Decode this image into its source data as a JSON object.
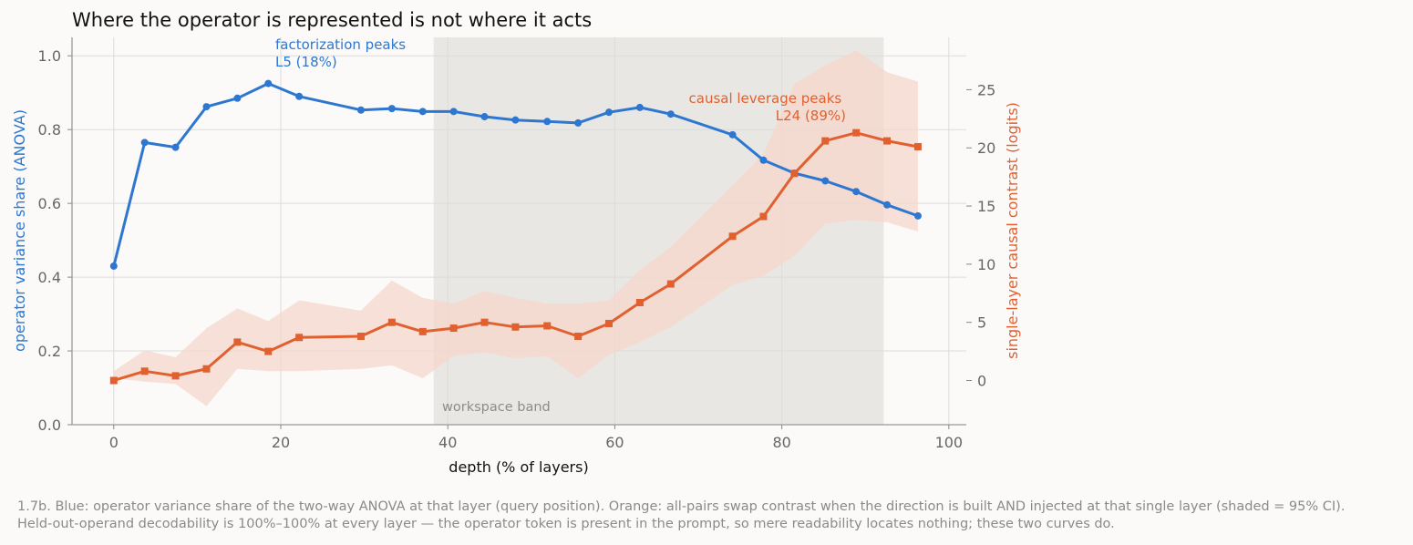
{
  "chart_data": {
    "type": "line",
    "title": "Where the operator is represented is not where it acts",
    "xlabel": "depth (% of layers)",
    "ylabel_left": "operator variance share (ANOVA)",
    "ylabel_right": "single-layer causal contrast (logits)",
    "xlim": [
      -5,
      101
    ],
    "ylim_left": [
      0,
      1.05
    ],
    "ylim_right": [
      -3.8,
      29.5
    ],
    "x_ticks": [
      0,
      20,
      40,
      60,
      80,
      100
    ],
    "x_tick_labels": [
      "0",
      "20",
      "40",
      "60",
      "80",
      "100"
    ],
    "y_left_ticks": [
      0.0,
      0.2,
      0.4,
      0.6,
      0.8,
      1.0
    ],
    "y_left_tick_labels": [
      "0.0",
      "0.2",
      "0.4",
      "0.6",
      "0.8",
      "1.0"
    ],
    "y_right_ticks": [
      0,
      5,
      10,
      15,
      20,
      25
    ],
    "y_right_tick_labels": [
      "0",
      "5",
      "10",
      "15",
      "20",
      "25"
    ],
    "grid": true,
    "colors": {
      "blue": "#2e77d0",
      "orange": "#e0612f",
      "band": "#e9e7e3",
      "ci": "#f6d7cc"
    },
    "band": {
      "label": "workspace band",
      "x_start": 38.3,
      "x_end": 92.2
    },
    "series": [
      {
        "axis": "left",
        "marker": "circle",
        "color": "#2e77d0",
        "x": [
          0,
          3.7,
          7.4,
          11.1,
          14.8,
          18.5,
          22.2,
          29.6,
          33.3,
          37.0,
          40.7,
          44.4,
          48.1,
          51.9,
          55.6,
          59.3,
          63.0,
          66.7,
          74.1,
          77.8,
          81.5,
          85.2,
          88.9,
          92.6,
          96.3
        ],
        "values": [
          0.43,
          0.765,
          0.752,
          0.862,
          0.885,
          0.925,
          0.89,
          0.853,
          0.857,
          0.849,
          0.849,
          0.835,
          0.826,
          0.822,
          0.818,
          0.847,
          0.86,
          0.842,
          0.786,
          0.717,
          0.682,
          0.661,
          0.632,
          0.596,
          0.566
        ]
      },
      {
        "axis": "right",
        "marker": "square",
        "color": "#e0612f",
        "x": [
          0,
          3.7,
          7.4,
          11.1,
          14.8,
          18.5,
          22.2,
          29.6,
          33.3,
          37.0,
          40.7,
          44.4,
          48.1,
          51.9,
          55.6,
          59.3,
          63.0,
          66.7,
          74.1,
          77.8,
          81.5,
          85.2,
          88.9,
          92.6,
          96.3
        ],
        "values": [
          0.0,
          0.8,
          0.4,
          1.0,
          3.3,
          2.5,
          3.7,
          3.8,
          5.0,
          4.2,
          4.5,
          5.0,
          4.6,
          4.7,
          3.8,
          4.9,
          6.7,
          8.3,
          12.4,
          14.1,
          17.8,
          20.6,
          21.3,
          20.6,
          20.1
        ],
        "ci_lower": [
          0.2,
          -0.1,
          -0.3,
          -2.2,
          1.0,
          0.8,
          0.8,
          1.0,
          1.3,
          0.2,
          2.1,
          2.4,
          1.9,
          2.1,
          0.2,
          2.2,
          3.3,
          4.6,
          8.2,
          9.0,
          10.7,
          13.5,
          13.8,
          13.6,
          12.8
        ],
        "ci_upper": [
          0.8,
          2.6,
          2.0,
          4.5,
          6.2,
          5.1,
          6.9,
          6.0,
          8.6,
          7.1,
          6.6,
          7.7,
          7.1,
          6.6,
          6.6,
          6.9,
          9.5,
          11.5,
          16.8,
          19.5,
          25.5,
          27.1,
          28.4,
          26.5,
          25.7
        ]
      }
    ],
    "annotations": [
      {
        "lines": [
          "factorization peaks",
          "L5 (18%)"
        ],
        "color": "#2e77d0"
      },
      {
        "lines": [
          "causal leverage peaks",
          "L24 (89%)"
        ],
        "color": "#e0612f"
      }
    ]
  },
  "caption": {
    "line1": "1.7b. Blue: operator variance share of the two-way ANOVA at that layer (query position). Orange: all-pairs swap contrast when the direction is built AND injected at that single layer (shaded = 95% CI).",
    "line2": "Held-out-operand decodability is 100%–100% at every layer — the operator token is present in the prompt, so mere readability locates nothing; these two curves do."
  }
}
